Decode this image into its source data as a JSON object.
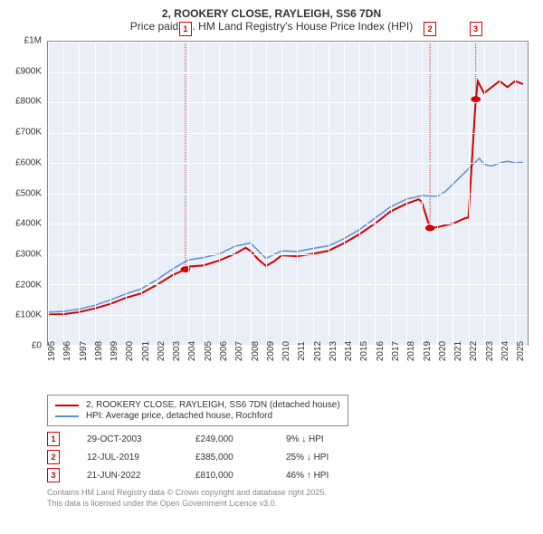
{
  "title": {
    "line1": "2, ROOKERY CLOSE, RAYLEIGH, SS6 7DN",
    "line2": "Price paid vs. HM Land Registry's House Price Index (HPI)"
  },
  "chart": {
    "type": "line",
    "background_color": "#e9eef7",
    "grid_color": "#ffffff",
    "border_color": "#888888",
    "y": {
      "min": 0,
      "max": 1000000,
      "ticks": [
        0,
        100000,
        200000,
        300000,
        400000,
        500000,
        600000,
        700000,
        800000,
        900000,
        1000000
      ],
      "labels": [
        "£0",
        "£100K",
        "£200K",
        "£300K",
        "£400K",
        "£500K",
        "£600K",
        "£700K",
        "£800K",
        "£900K",
        "£1M"
      ],
      "label_fontsize": 10,
      "label_color": "#333333"
    },
    "x": {
      "min": 1995,
      "max": 2025.8,
      "ticks": [
        1995,
        1996,
        1997,
        1998,
        1999,
        2000,
        2001,
        2002,
        2003,
        2004,
        2005,
        2006,
        2007,
        2008,
        2009,
        2010,
        2011,
        2012,
        2013,
        2014,
        2015,
        2016,
        2017,
        2018,
        2019,
        2020,
        2021,
        2022,
        2023,
        2024,
        2025
      ],
      "label_fontsize": 10,
      "label_color": "#333333",
      "label_rotation": -90
    },
    "series": [
      {
        "id": "property",
        "label": "2, ROOKERY CLOSE, RAYLEIGH, SS6 7DN (detached house)",
        "color": "#d40000",
        "line_width": 2,
        "data": [
          [
            1995,
            100000
          ],
          [
            1996,
            101000
          ],
          [
            1997,
            108000
          ],
          [
            1998,
            120000
          ],
          [
            1999,
            135000
          ],
          [
            2000,
            155000
          ],
          [
            2001,
            170000
          ],
          [
            2002,
            198000
          ],
          [
            2003,
            230000
          ],
          [
            2003.83,
            249000
          ],
          [
            2003.84,
            240000
          ],
          [
            2004,
            258000
          ],
          [
            2005,
            262000
          ],
          [
            2006,
            278000
          ],
          [
            2007,
            300000
          ],
          [
            2007.7,
            320000
          ],
          [
            2008,
            310000
          ],
          [
            2008.5,
            282000
          ],
          [
            2009,
            260000
          ],
          [
            2009.5,
            275000
          ],
          [
            2010,
            295000
          ],
          [
            2011,
            292000
          ],
          [
            2012,
            300000
          ],
          [
            2013,
            310000
          ],
          [
            2014,
            335000
          ],
          [
            2015,
            365000
          ],
          [
            2016,
            400000
          ],
          [
            2017,
            440000
          ],
          [
            2018,
            465000
          ],
          [
            2018.8,
            480000
          ],
          [
            2019,
            472000
          ],
          [
            2019.53,
            385000
          ],
          [
            2019.54,
            385000
          ],
          [
            2020,
            388000
          ],
          [
            2021,
            400000
          ],
          [
            2021.8,
            418000
          ],
          [
            2022,
            420000
          ],
          [
            2022.47,
            810000
          ],
          [
            2022.48,
            810000
          ],
          [
            2022.6,
            870000
          ],
          [
            2023,
            830000
          ],
          [
            2023.5,
            850000
          ],
          [
            2024,
            870000
          ],
          [
            2024.5,
            850000
          ],
          [
            2025,
            870000
          ],
          [
            2025.5,
            860000
          ]
        ]
      },
      {
        "id": "hpi",
        "label": "HPI: Average price, detached house, Rochford",
        "color": "#5b8fd6",
        "line_width": 1.5,
        "data": [
          [
            1995,
            108000
          ],
          [
            1996,
            110000
          ],
          [
            1997,
            118000
          ],
          [
            1998,
            130000
          ],
          [
            1999,
            148000
          ],
          [
            2000,
            168000
          ],
          [
            2001,
            185000
          ],
          [
            2002,
            215000
          ],
          [
            2003,
            250000
          ],
          [
            2004,
            280000
          ],
          [
            2005,
            288000
          ],
          [
            2006,
            300000
          ],
          [
            2007,
            325000
          ],
          [
            2008,
            336000
          ],
          [
            2008.7,
            300000
          ],
          [
            2009,
            285000
          ],
          [
            2010,
            310000
          ],
          [
            2011,
            308000
          ],
          [
            2012,
            318000
          ],
          [
            2013,
            326000
          ],
          [
            2014,
            350000
          ],
          [
            2015,
            380000
          ],
          [
            2016,
            418000
          ],
          [
            2017,
            455000
          ],
          [
            2018,
            480000
          ],
          [
            2019,
            492000
          ],
          [
            2020,
            490000
          ],
          [
            2020.5,
            505000
          ],
          [
            2021,
            530000
          ],
          [
            2022,
            580000
          ],
          [
            2022.7,
            615000
          ],
          [
            2023,
            595000
          ],
          [
            2023.5,
            590000
          ],
          [
            2024,
            600000
          ],
          [
            2024.5,
            605000
          ],
          [
            2025,
            600000
          ],
          [
            2025.5,
            602000
          ]
        ]
      }
    ],
    "markers": [
      {
        "n": "1",
        "x": 2003.83,
        "y": 249000
      },
      {
        "n": "2",
        "x": 2019.53,
        "y": 385000
      },
      {
        "n": "3",
        "x": 2022.47,
        "y": 810000
      }
    ]
  },
  "legend": {
    "border_color": "#888888",
    "items": [
      {
        "color": "#d40000",
        "label": "2, ROOKERY CLOSE, RAYLEIGH, SS6 7DN (detached house)"
      },
      {
        "color": "#5b8fd6",
        "label": "HPI: Average price, detached house, Rochford"
      }
    ]
  },
  "sales": [
    {
      "n": "1",
      "date": "29-OCT-2003",
      "price": "£249,000",
      "delta": "9% ↓ HPI"
    },
    {
      "n": "2",
      "date": "12-JUL-2019",
      "price": "£385,000",
      "delta": "25% ↓ HPI"
    },
    {
      "n": "3",
      "date": "21-JUN-2022",
      "price": "£810,000",
      "delta": "46% ↑ HPI"
    }
  ],
  "footer": {
    "line1": "Contains HM Land Registry data © Crown copyright and database right 2025.",
    "line2": "This data is licensed under the Open Government Licence v3.0."
  },
  "colors": {
    "title": "#333333",
    "footer": "#888888",
    "marker_border": "#d40000"
  }
}
